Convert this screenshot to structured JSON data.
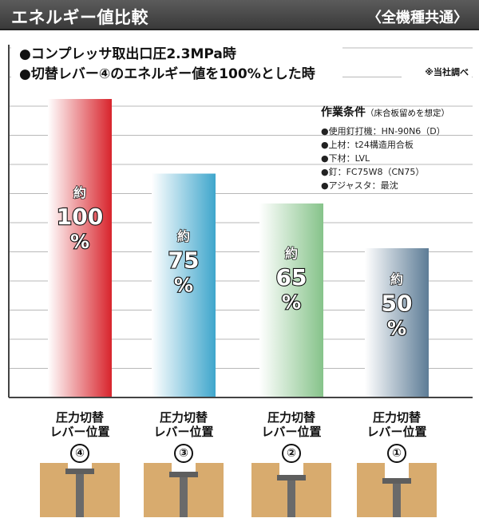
{
  "header": {
    "title": "エネルギー値比較",
    "scope": "〈全機種共通〉"
  },
  "notes": [
    "●コンプレッサ取出口圧2.3MPa時",
    "●切替レバー④のエネルギー値を100%とした時"
  ],
  "source_note": "※当社調べ",
  "conditions": {
    "title": "作業条件",
    "subtitle": "（床合板留めを想定）",
    "items": [
      "●使用釘打機：HN-90N6（D）",
      "●上材：t24構造用合板",
      "●下材：LVL",
      "●釘：FC75W8（CN75）",
      "●アジャスタ：最沈"
    ]
  },
  "chart_data": {
    "type": "bar",
    "categories": [
      "④",
      "③",
      "②",
      "①"
    ],
    "values": [
      100,
      75,
      65,
      50
    ],
    "value_labels": [
      {
        "prefix": "約",
        "number": "100",
        "unit": "%"
      },
      {
        "prefix": "約",
        "number": "75",
        "unit": "%"
      },
      {
        "prefix": "約",
        "number": "65",
        "unit": "%"
      },
      {
        "prefix": "約",
        "number": "50",
        "unit": "%"
      }
    ],
    "category_label_lines": [
      "圧力切替",
      "レバー位置"
    ],
    "ylim": [
      0,
      123
    ],
    "grid": true,
    "colors": [
      "#d8242c",
      "#3fa6cc",
      "#86c38a",
      "#5d7c96"
    ]
  },
  "nail_depths": [
    0.35,
    0.55,
    0.75,
    0.95
  ]
}
